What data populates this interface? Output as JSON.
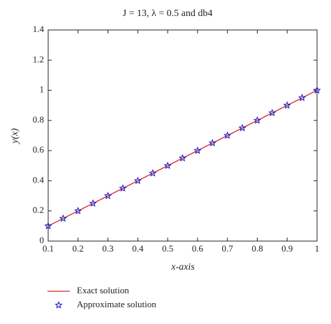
{
  "chart_data": {
    "type": "line",
    "title": "J = 13, λ = 0.5 and db4",
    "xlabel": "x-axis",
    "ylabel": "y(x)",
    "xlim": [
      0.1,
      1
    ],
    "ylim": [
      0,
      1.4
    ],
    "xticks": [
      0.1,
      0.2,
      0.3,
      0.4,
      0.5,
      0.6,
      0.7,
      0.8,
      0.9,
      1
    ],
    "yticks": [
      0,
      0.2,
      0.4,
      0.6,
      0.8,
      1,
      1.2,
      1.4
    ],
    "grid": false,
    "legend": "bottom-left",
    "series": [
      {
        "name": "Exact solution",
        "color": "#d62728",
        "mode": "line",
        "x": [
          0.1,
          1
        ],
        "values": [
          0.1,
          1
        ]
      },
      {
        "name": "Approximate solution",
        "color": "#1f1fc8",
        "mode": "marker",
        "marker": "star",
        "x": [
          0.1,
          0.15,
          0.2,
          0.25,
          0.3,
          0.35,
          0.4,
          0.45,
          0.5,
          0.55,
          0.6,
          0.65,
          0.7,
          0.75,
          0.8,
          0.85,
          0.9,
          0.95,
          1
        ],
        "values": [
          0.1,
          0.15,
          0.2,
          0.25,
          0.3,
          0.35,
          0.4,
          0.45,
          0.5,
          0.55,
          0.6,
          0.65,
          0.7,
          0.75,
          0.8,
          0.85,
          0.9,
          0.95,
          1
        ]
      }
    ]
  }
}
